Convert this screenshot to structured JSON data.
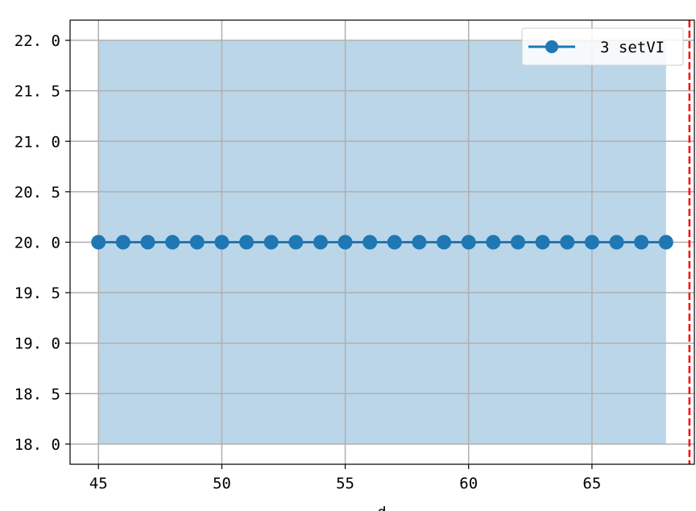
{
  "chart_data": {
    "type": "line",
    "title": "",
    "xlabel": "d",
    "ylabel": "",
    "x": [
      45,
      46,
      47,
      48,
      49,
      50,
      51,
      52,
      53,
      54,
      55,
      56,
      57,
      58,
      59,
      60,
      61,
      62,
      63,
      64,
      65,
      66,
      67,
      68
    ],
    "series": [
      {
        "name": "3 setVI",
        "values": [
          20,
          20,
          20,
          20,
          20,
          20,
          20,
          20,
          20,
          20,
          20,
          20,
          20,
          20,
          20,
          20,
          20,
          20,
          20,
          20,
          20,
          20,
          20,
          20
        ],
        "color": "#1f77b4",
        "marker": "circle"
      }
    ],
    "band": {
      "x_from": 45,
      "x_to": 68,
      "y_from": 18.0,
      "y_to": 22.0,
      "color": "#1f77b4",
      "opacity": 0.3
    },
    "vline": {
      "x": 68.95,
      "color": "#ff0000",
      "style": "dashed"
    },
    "xlim": [
      43.85,
      69.15
    ],
    "ylim": [
      17.8,
      22.2
    ],
    "xticks": [
      45,
      50,
      55,
      60,
      65
    ],
    "yticks": [
      18.0,
      18.5,
      19.0,
      19.5,
      20.0,
      20.5,
      21.0,
      21.5,
      22.0
    ],
    "xtick_labels": [
      "45",
      "50",
      "55",
      "60",
      "65"
    ],
    "ytick_labels": [
      "18. 0",
      "18. 5",
      "19. 0",
      "19. 5",
      "20. 0",
      "20. 5",
      "21. 0",
      "21. 5",
      "22. 0"
    ],
    "grid": true,
    "legend_position": "top-right"
  }
}
